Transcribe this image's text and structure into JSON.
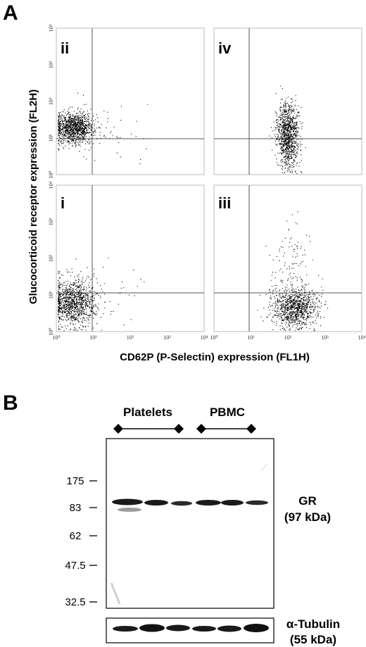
{
  "panel_a": {
    "letter": "A",
    "ylabel": "Glucocorticoid receptor expression (FL2H)",
    "xlabel": "CD62P (P-Selectin) expression (FL1H)",
    "quadrants": [
      {
        "id": "ii",
        "label": "ii"
      },
      {
        "id": "iv",
        "label": "iv"
      },
      {
        "id": "i",
        "label": "i"
      },
      {
        "id": "iii",
        "label": "iii"
      }
    ],
    "y_ticks": [
      "10⁰",
      "10¹",
      "10²",
      "10³",
      "10⁴"
    ],
    "x_ticks": [
      "10⁰",
      "10¹",
      "10²",
      "10³",
      "10⁴"
    ]
  },
  "panel_b": {
    "letter": "B",
    "groups": [
      {
        "label": "Platelets"
      },
      {
        "label": "PBMC"
      }
    ],
    "mw_markers": [
      "175",
      "83",
      "62",
      "47.5",
      "32.5"
    ],
    "gr_label": "GR",
    "gr_kda": "(97 kDa)",
    "tubulin_label": "α-Tubulin",
    "tubulin_kda": "(55 kDa)"
  },
  "colors": {
    "ink": "#000000",
    "band": "#1a1a1a"
  }
}
